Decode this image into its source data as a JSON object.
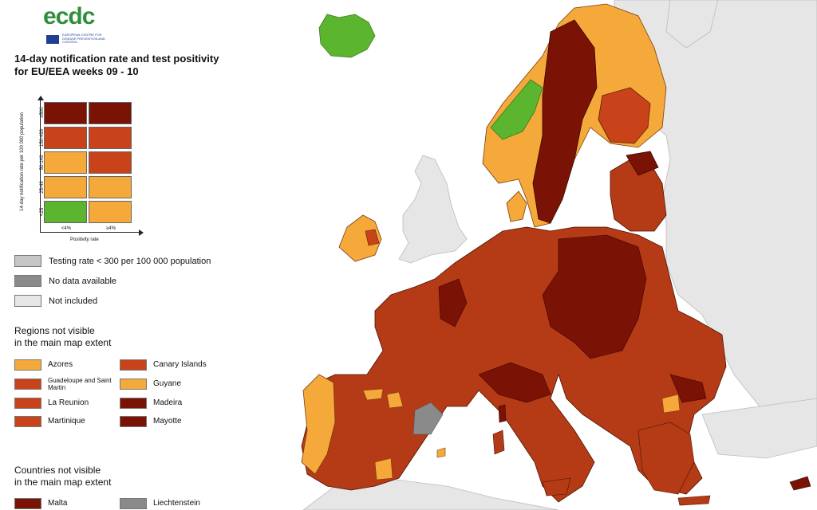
{
  "logo": {
    "wordmark": "ecdc",
    "subtitle": "EUROPEAN CENTRE FOR DISEASE PREVENTION AND CONTROL"
  },
  "title": {
    "line1": "14-day notification rate and test positivity",
    "line2": "for EU/EEA weeks 09 - 10"
  },
  "matrix": {
    "y_axis_label": "14-day notification rate per 100 000 population",
    "x_axis_label": "Positivity rate",
    "row_labels": [
      "≥500",
      "150-499",
      "50-149",
      "25-49",
      "<25"
    ],
    "col_labels": [
      "<4%",
      "≥4%"
    ],
    "cells": [
      [
        "#7a1205",
        "#7a1205"
      ],
      [
        "#c9431a",
        "#c9431a"
      ],
      [
        "#f4a93a",
        "#c9431a"
      ],
      [
        "#f4a93a",
        "#f4a93a"
      ],
      [
        "#5bb52f",
        "#f4a93a"
      ]
    ]
  },
  "key": [
    {
      "label": "Testing rate < 300 per 100 000 population",
      "color": "#c6c6c6"
    },
    {
      "label": "No data available",
      "color": "#8a8a8a"
    },
    {
      "label": "Not included",
      "color": "#e6e6e6"
    }
  ],
  "regions_heading": {
    "line1": "Regions not visible",
    "line2": "in the main map extent"
  },
  "regions": [
    {
      "label": "Azores",
      "color": "#f4a93a"
    },
    {
      "label": "Guadeloupe and Saint Martin",
      "color": "#c9431a"
    },
    {
      "label": "La Reunion",
      "color": "#c9431a"
    },
    {
      "label": "Martinique",
      "color": "#c9431a"
    },
    {
      "label": "Canary Islands",
      "color": "#c9431a"
    },
    {
      "label": "Guyane",
      "color": "#f4a93a"
    },
    {
      "label": "Madeira",
      "color": "#7a1205"
    },
    {
      "label": "Mayotte",
      "color": "#7a1205"
    }
  ],
  "countries_heading": {
    "line1": "Countries not visible",
    "line2": "in the main map extent"
  },
  "countries": [
    {
      "label": "Malta",
      "color": "#7a1205"
    },
    {
      "label": "Liechtenstein",
      "color": "#8a8a8a"
    }
  ],
  "colors": {
    "sea": "#ffffff",
    "not_included": "#e6e6e6",
    "dark_red": "#7a1205",
    "red": "#b53a16",
    "orange": "#f4a93a",
    "green": "#5bb52f",
    "no_data": "#8a8a8a"
  }
}
